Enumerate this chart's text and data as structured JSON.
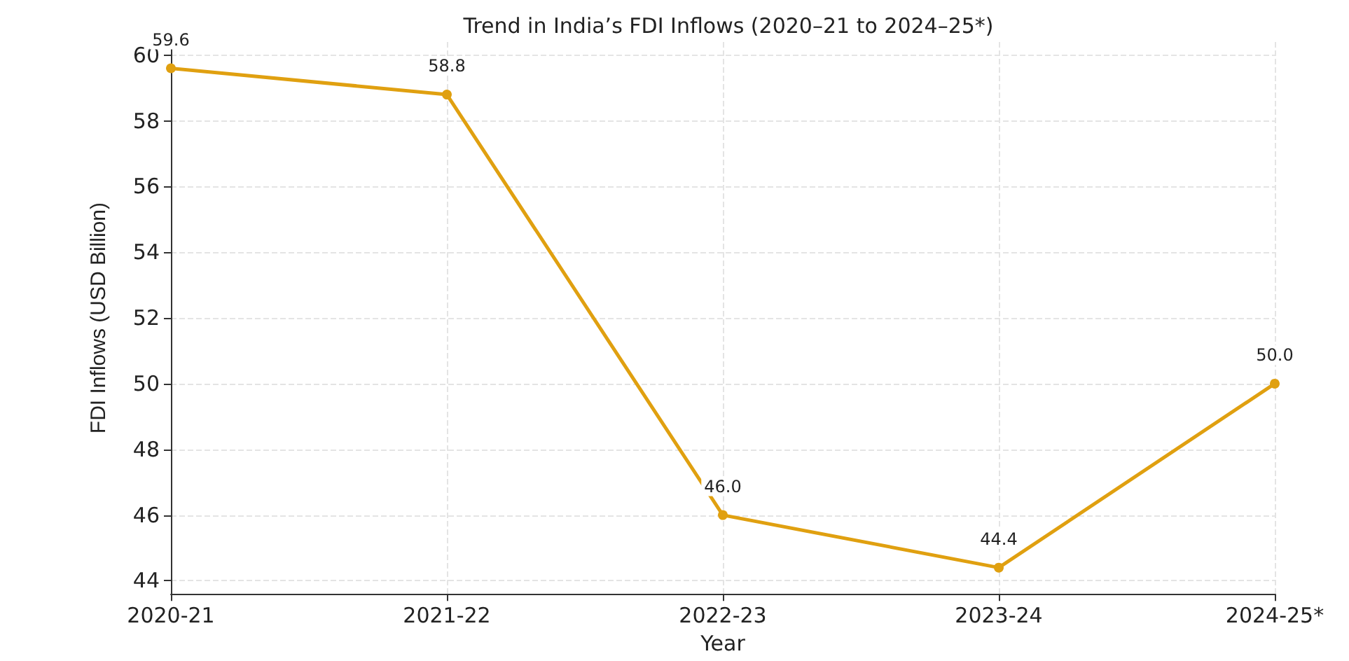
{
  "chart_data": {
    "type": "line",
    "title": "Trend in India’s FDI Inflows (2020–21 to 2024–25*)",
    "xlabel": "Year",
    "ylabel": "FDI Inflows (USD Billion)",
    "categories": [
      "2020-21",
      "2021-22",
      "2022-23",
      "2023-24",
      "2024-25*"
    ],
    "series": [
      {
        "color": "#e0a010",
        "values": [
          59.6,
          58.8,
          46.0,
          44.4,
          50.0
        ],
        "value_labels": [
          "59.6",
          "58.8",
          "46.0",
          "44.4",
          "50.0"
        ]
      }
    ],
    "ylim": [
      43.6,
      60.4
    ],
    "yticks": [
      44,
      46,
      48,
      50,
      52,
      54,
      56,
      58,
      60
    ],
    "grid": true,
    "marker": "circle",
    "line_style": "solid"
  }
}
